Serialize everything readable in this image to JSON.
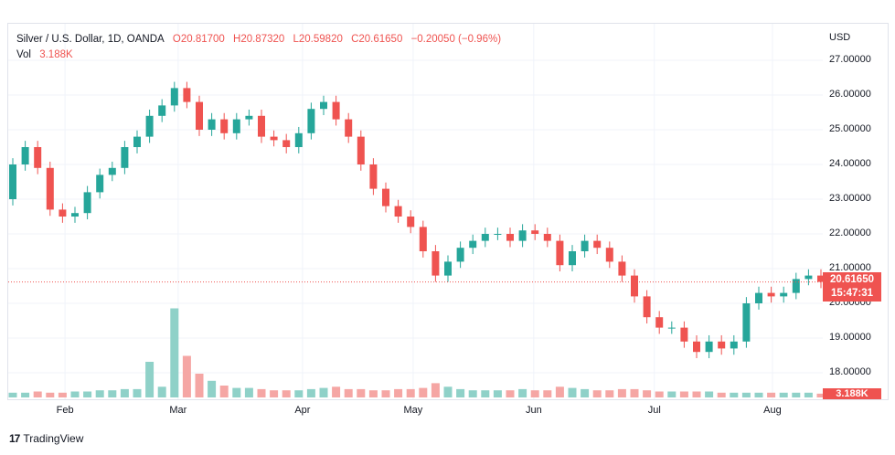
{
  "legend": {
    "symbol": "Silver / U.S. Dollar, 1D, OANDA",
    "open": "O20.81700",
    "high": "H20.87320",
    "low": "L20.59820",
    "close": "C20.61650",
    "change": "−0.20050 (−0.96%)",
    "vol_label": "Vol",
    "vol_value": "3.188K"
  },
  "brand": "TradingView",
  "colors": {
    "up": "#26a69a",
    "down": "#ef5350",
    "up_vol": "#8fd1c8",
    "down_vol": "#f5a6a4",
    "grid": "#f0f3fa"
  },
  "chart_data": {
    "type": "candlestick",
    "title": "Silver / U.S. Dollar, 1D, OANDA",
    "currency": "USD",
    "y_ticks": [
      "27.00000",
      "26.00000",
      "25.00000",
      "24.00000",
      "23.00000",
      "22.00000",
      "21.00000",
      "20.00000",
      "19.00000",
      "18.00000"
    ],
    "y_tick_values": [
      27,
      26,
      25,
      24,
      23,
      22,
      21,
      20,
      19,
      18
    ],
    "ylim": [
      17.3,
      27.3
    ],
    "x_ticks": [
      "Feb",
      "Mar",
      "Apr",
      "May",
      "Jun",
      "Jul",
      "Aug"
    ],
    "x_tick_index": [
      4.2,
      13.3,
      23.3,
      32.2,
      41.9,
      51.6,
      61.1
    ],
    "last_price": "20.61650",
    "countdown": "15:47:31",
    "last_volume": "3.188K",
    "closes": [
      24.0,
      24.5,
      23.9,
      22.7,
      22.5,
      22.6,
      23.2,
      23.7,
      23.9,
      24.5,
      24.8,
      25.4,
      25.7,
      26.2,
      25.8,
      25.0,
      25.3,
      24.9,
      25.3,
      25.4,
      24.8,
      24.7,
      24.5,
      24.9,
      25.6,
      25.8,
      25.3,
      24.8,
      24.0,
      23.3,
      22.8,
      22.5,
      22.2,
      21.5,
      20.8,
      21.2,
      21.6,
      21.8,
      22.0,
      22.0,
      21.8,
      22.1,
      22.0,
      21.8,
      21.1,
      21.5,
      21.8,
      21.6,
      21.2,
      20.8,
      20.2,
      19.6,
      19.3,
      19.3,
      18.9,
      18.6,
      18.9,
      18.7,
      18.9,
      20.0,
      20.3,
      20.2,
      20.3,
      20.7,
      20.8,
      20.6165
    ],
    "first_open": 23.0,
    "volume_k": [
      4,
      4,
      5,
      4,
      4,
      5,
      5,
      6,
      6,
      7,
      7,
      30,
      9,
      75,
      35,
      20,
      14,
      10,
      8,
      8,
      7,
      6,
      6,
      6,
      7,
      8,
      9,
      7,
      7,
      6,
      6,
      7,
      7,
      8,
      12,
      9,
      7,
      6,
      6,
      6,
      6,
      7,
      6,
      6,
      9,
      8,
      7,
      6,
      6,
      7,
      7,
      6,
      5,
      5,
      5,
      5,
      5,
      4,
      4,
      4,
      4,
      4,
      4,
      4,
      4,
      3.188
    ]
  }
}
